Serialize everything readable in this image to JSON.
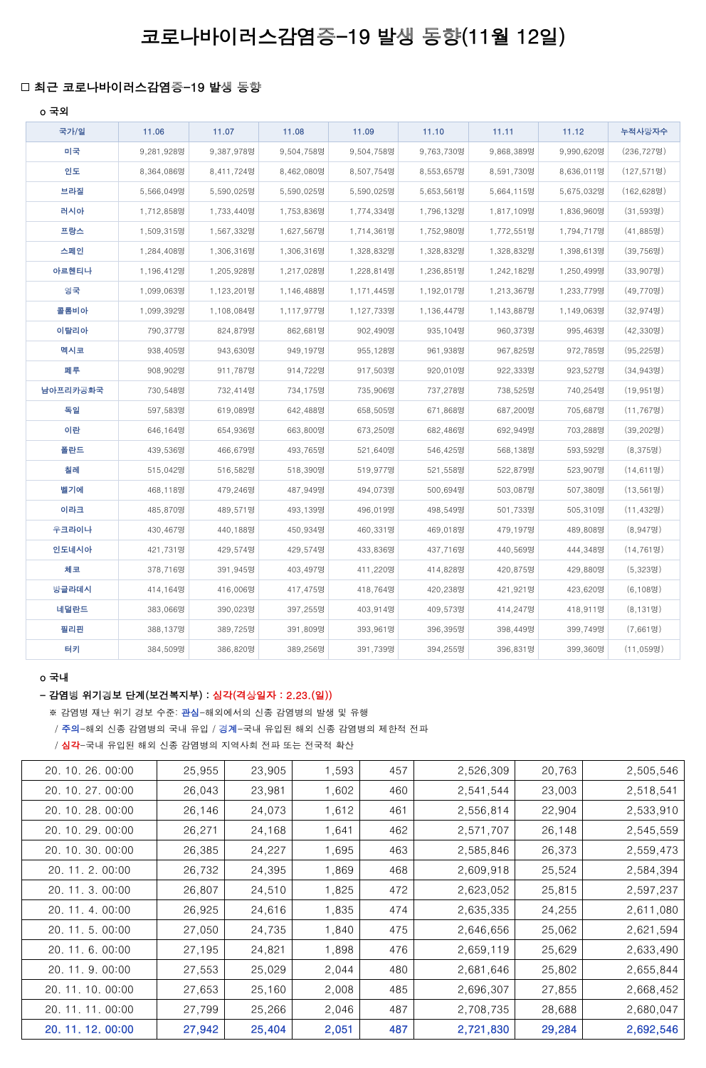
{
  "title": "코로나바이러스감염증-19 발생 동향(11월 12일)",
  "section_heading": "최근 코로나바이러스감염증-19 발생 동향",
  "sub_overseas": "국외",
  "sub_domestic": "국내",
  "intl_table": {
    "columns": [
      "국가/일",
      "11.06",
      "11.07",
      "11.08",
      "11.09",
      "11.10",
      "11.11",
      "11.12",
      "누적사망자수"
    ],
    "rows": [
      [
        "미국",
        "9,281,928명",
        "9,387,978명",
        "9,504,758명",
        "9,504,758명",
        "9,763,730명",
        "9,868,389명",
        "9,990,620명",
        "(236,727명)"
      ],
      [
        "인도",
        "8,364,086명",
        "8,411,724명",
        "8,462,080명",
        "8,507,754명",
        "8,553,657명",
        "8,591,730명",
        "8,636,011명",
        "(127,571명)"
      ],
      [
        "브라질",
        "5,566,049명",
        "5,590,025명",
        "5,590,025명",
        "5,590,025명",
        "5,653,561명",
        "5,664,115명",
        "5,675,032명",
        "(162,628명)"
      ],
      [
        "러시아",
        "1,712,858명",
        "1,733,440명",
        "1,753,836명",
        "1,774,334명",
        "1,796,132명",
        "1,817,109명",
        "1,836,960명",
        "(31,593명)"
      ],
      [
        "프랑스",
        "1,509,315명",
        "1,567,332명",
        "1,627,567명",
        "1,714,361명",
        "1,752,980명",
        "1,772,551명",
        "1,794,717명",
        "(41,885명)"
      ],
      [
        "스페인",
        "1,284,408명",
        "1,306,316명",
        "1,306,316명",
        "1,328,832명",
        "1,328,832명",
        "1,328,832명",
        "1,398,613명",
        "(39,756명)"
      ],
      [
        "아르헨티나",
        "1,196,412명",
        "1,205,928명",
        "1,217,028명",
        "1,228,814명",
        "1,236,851명",
        "1,242,182명",
        "1,250,499명",
        "(33,907명)"
      ],
      [
        "영국",
        "1,099,063명",
        "1,123,201명",
        "1,146,488명",
        "1,171,445명",
        "1,192,017명",
        "1,213,367명",
        "1,233,779명",
        "(49,770명)"
      ],
      [
        "콜롬비아",
        "1,099,392명",
        "1,108,084명",
        "1,117,977명",
        "1,127,733명",
        "1,136,447명",
        "1,143,887명",
        "1,149,063명",
        "(32,974명)"
      ],
      [
        "이탈리아",
        "790,377명",
        "824,879명",
        "862,681명",
        "902,490명",
        "935,104명",
        "960,373명",
        "995,463명",
        "(42,330명)"
      ],
      [
        "멕시코",
        "938,405명",
        "943,630명",
        "949,197명",
        "955,128명",
        "961,938명",
        "967,825명",
        "972,785명",
        "(95,225명)"
      ],
      [
        "페루",
        "908,902명",
        "911,787명",
        "914,722명",
        "917,503명",
        "920,010명",
        "922,333명",
        "923,527명",
        "(34,943명)"
      ],
      [
        "남아프리카공화국",
        "730,548명",
        "732,414명",
        "734,175명",
        "735,906명",
        "737,278명",
        "738,525명",
        "740,254명",
        "(19,951명)"
      ],
      [
        "독일",
        "597,583명",
        "619,089명",
        "642,488명",
        "658,505명",
        "671,868명",
        "687,200명",
        "705,687명",
        "(11,767명)"
      ],
      [
        "이란",
        "646,164명",
        "654,936명",
        "663,800명",
        "673,250명",
        "682,486명",
        "692,949명",
        "703,288명",
        "(39,202명)"
      ],
      [
        "폴란드",
        "439,536명",
        "466,679명",
        "493,765명",
        "521,640명",
        "546,425명",
        "568,138명",
        "593,592명",
        "(8,375명)"
      ],
      [
        "칠레",
        "515,042명",
        "516,582명",
        "518,390명",
        "519,977명",
        "521,558명",
        "522,879명",
        "523,907명",
        "(14,611명)"
      ],
      [
        "벨기에",
        "468,118명",
        "479,246명",
        "487,949명",
        "494,073명",
        "500,694명",
        "503,087명",
        "507,380명",
        "(13,561명)"
      ],
      [
        "이라크",
        "485,870명",
        "489,571명",
        "493,139명",
        "496,019명",
        "498,549명",
        "501,733명",
        "505,310명",
        "(11,432명)"
      ],
      [
        "우크라이나",
        "430,467명",
        "440,188명",
        "450,934명",
        "460,331명",
        "469,018명",
        "479,197명",
        "489,808명",
        "(8,947명)"
      ],
      [
        "인도네시아",
        "421,731명",
        "429,574명",
        "429,574명",
        "433,836명",
        "437,716명",
        "440,569명",
        "444,348명",
        "(14,761명)"
      ],
      [
        "체코",
        "378,716명",
        "391,945명",
        "403,497명",
        "411,220명",
        "414,828명",
        "420,875명",
        "429,880명",
        "(5,323명)"
      ],
      [
        "방글라데시",
        "414,164명",
        "416,006명",
        "417,475명",
        "418,764명",
        "420,238명",
        "421,921명",
        "423,620명",
        "(6,108명)"
      ],
      [
        "네덜란드",
        "383,066명",
        "390,023명",
        "397,255명",
        "403,914명",
        "409,573명",
        "414,247명",
        "418,911명",
        "(8,131명)"
      ],
      [
        "필리핀",
        "388,137명",
        "389,725명",
        "391,809명",
        "393,961명",
        "396,395명",
        "398,449명",
        "399,749명",
        "(7,661명)"
      ],
      [
        "터키",
        "384,509명",
        "386,820명",
        "389,256명",
        "391,739명",
        "394,255명",
        "396,831명",
        "399,360명",
        "(11,059명)"
      ]
    ],
    "header_bg": "#e8eef7",
    "header_color": "#2a4a8a",
    "border_color": "#d0d8e6"
  },
  "alert": {
    "prefix": "- 감염병 위기경보 단계(보건복지부) : ",
    "level": "심각(격상일자 : 2.23.(일))",
    "note_prefix": "※ 감염병 재난 위기 경보 수준: ",
    "levels": {
      "관심": "-해외에서의 신종 감염병의 발생 및 유행",
      "주의": "-해외 신종 감염병의 국내 유입",
      "경계": "-국내 유입된 해외 신종 감염병의 제한적 전파",
      "심각": "-국내 유입된 해외 신종 감염병의 지역사회 전파 또는 전국적 확산"
    }
  },
  "dom_table": {
    "highlight_color": "#1a3fb3",
    "rows": [
      [
        "20. 10. 26. 00:00",
        "25,955",
        "23,905",
        "1,593",
        "457",
        "2,526,309",
        "20,763",
        "2,505,546"
      ],
      [
        "20. 10. 27. 00:00",
        "26,043",
        "23,981",
        "1,602",
        "460",
        "2,541,544",
        "23,003",
        "2,518,541"
      ],
      [
        "20. 10. 28. 00:00",
        "26,146",
        "24,073",
        "1,612",
        "461",
        "2,556,814",
        "22,904",
        "2,533,910"
      ],
      [
        "20. 10. 29. 00:00",
        "26,271",
        "24,168",
        "1,641",
        "462",
        "2,571,707",
        "26,148",
        "2,545,559"
      ],
      [
        "20. 10. 30. 00:00",
        "26,385",
        "24,227",
        "1,695",
        "463",
        "2,585,846",
        "26,373",
        "2,559,473"
      ],
      [
        "20. 11.  2. 00:00",
        "26,732",
        "24,395",
        "1,869",
        "468",
        "2,609,918",
        "25,524",
        "2,584,394"
      ],
      [
        "20. 11.  3. 00:00",
        "26,807",
        "24,510",
        "1,825",
        "472",
        "2,623,052",
        "25,815",
        "2,597,237"
      ],
      [
        "20. 11.  4. 00:00",
        "26,925",
        "24,616",
        "1,835",
        "474",
        "2,635,335",
        "24,255",
        "2,611,080"
      ],
      [
        "20. 11.  5. 00:00",
        "27,050",
        "24,735",
        "1,840",
        "475",
        "2,646,656",
        "25,062",
        "2,621,594"
      ],
      [
        "20. 11.  6. 00:00",
        "27,195",
        "24,821",
        "1,898",
        "476",
        "2,659,119",
        "25,629",
        "2,633,490"
      ],
      [
        "20. 11.  9. 00:00",
        "27,553",
        "25,029",
        "2,044",
        "480",
        "2,681,646",
        "25,802",
        "2,655,844"
      ],
      [
        "20. 11. 10. 00:00",
        "27,653",
        "25,160",
        "2,008",
        "485",
        "2,696,307",
        "27,855",
        "2,668,452"
      ],
      [
        "20. 11. 11. 00:00",
        "27,799",
        "25,266",
        "2,046",
        "487",
        "2,708,735",
        "28,688",
        "2,680,047"
      ],
      [
        "20. 11. 12. 00:00",
        "27,942",
        "25,404",
        "2,051",
        "487",
        "2,721,830",
        "29,284",
        "2,692,546"
      ]
    ],
    "highlight_last": true
  }
}
